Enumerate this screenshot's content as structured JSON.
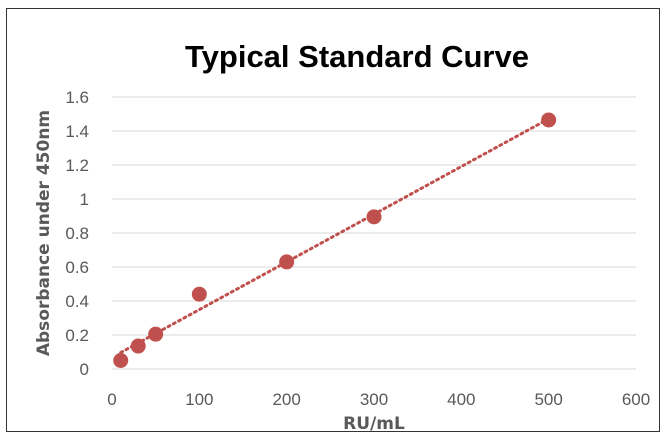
{
  "chart_data": {
    "type": "scatter",
    "title": "Typical Standard Curve",
    "xlabel": "RU/mL",
    "ylabel": "Absorbance under 450nm",
    "xlim": [
      0,
      600
    ],
    "ylim": [
      0,
      1.6
    ],
    "xticks": [
      "0",
      "100",
      "200",
      "300",
      "400",
      "500",
      "600"
    ],
    "yticks": [
      "0",
      "0.2",
      "0.4",
      "0.6",
      "0.8",
      "1",
      "1.2",
      "1.4",
      "1.6"
    ],
    "grid": "horizontal",
    "point_color": "#c0504d",
    "trendline": {
      "style": "dotted",
      "type": "linear",
      "color": "#c0504d"
    },
    "points": [
      {
        "x": 10,
        "y": 0.05
      },
      {
        "x": 30,
        "y": 0.135
      },
      {
        "x": 50,
        "y": 0.205
      },
      {
        "x": 100,
        "y": 0.44
      },
      {
        "x": 200,
        "y": 0.63
      },
      {
        "x": 300,
        "y": 0.895
      },
      {
        "x": 500,
        "y": 1.465
      }
    ]
  }
}
